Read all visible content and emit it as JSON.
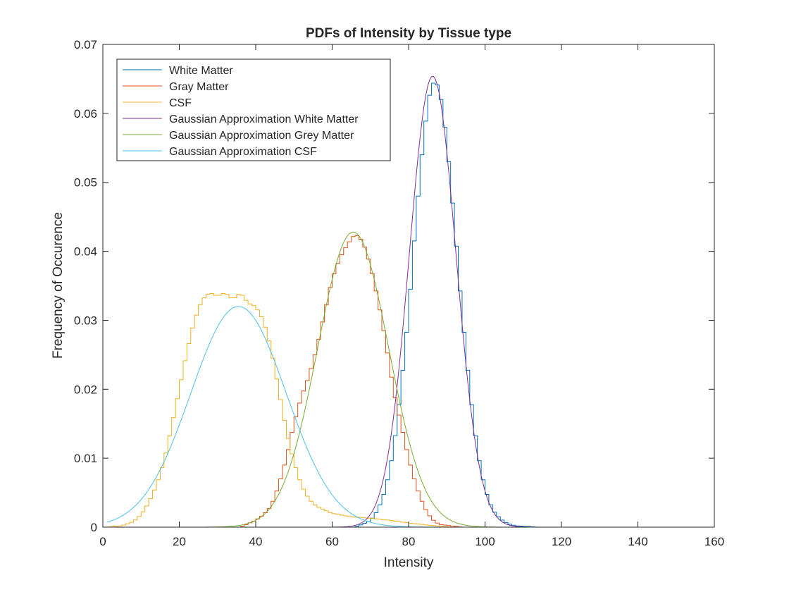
{
  "chart_data": {
    "type": "line",
    "title": "PDFs of Intensity by Tissue type",
    "xlabel": "Intensity",
    "ylabel": "Frequency of Occurence",
    "xlim": [
      0,
      160
    ],
    "ylim": [
      0,
      0.07
    ],
    "xticks": [
      0,
      20,
      40,
      60,
      80,
      100,
      120,
      140,
      160
    ],
    "yticks": [
      0,
      0.01,
      0.02,
      0.03,
      0.04,
      0.05,
      0.06,
      0.07
    ],
    "xtick_labels": [
      "0",
      "20",
      "40",
      "60",
      "80",
      "100",
      "120",
      "140",
      "160"
    ],
    "ytick_labels": [
      "0",
      "0.01",
      "0.02",
      "0.03",
      "0.04",
      "0.05",
      "0.06",
      "0.07"
    ],
    "grid": false,
    "legend_position": "top-left",
    "series": [
      {
        "name": "White Matter",
        "kind": "histogram",
        "color": "#0072BD",
        "bin_width": 1,
        "x": [
          70,
          72,
          74,
          76,
          78,
          80,
          82,
          84,
          86,
          88,
          90,
          92,
          94,
          96,
          98,
          100,
          102,
          104,
          106,
          108
        ],
        "values": [
          0.0009,
          0.0025,
          0.0055,
          0.011,
          0.02,
          0.031,
          0.045,
          0.057,
          0.0645,
          0.064,
          0.056,
          0.044,
          0.031,
          0.02,
          0.011,
          0.0055,
          0.0025,
          0.0012,
          0.0005,
          0.0002
        ]
      },
      {
        "name": "Gray Matter",
        "kind": "histogram",
        "color": "#D95319",
        "bin_width": 1,
        "x": [
          40,
          42,
          44,
          46,
          48,
          50,
          52,
          54,
          56,
          58,
          60,
          62,
          64,
          66,
          68,
          70,
          72,
          74,
          76,
          78,
          80,
          82,
          84,
          86,
          88
        ],
        "values": [
          0.001,
          0.0018,
          0.003,
          0.006,
          0.01,
          0.015,
          0.019,
          0.022,
          0.026,
          0.031,
          0.036,
          0.039,
          0.041,
          0.0425,
          0.0415,
          0.038,
          0.033,
          0.027,
          0.02,
          0.015,
          0.01,
          0.006,
          0.003,
          0.0012,
          0.0004
        ]
      },
      {
        "name": "CSF",
        "kind": "histogram",
        "color": "#EDB120",
        "bin_width": 1,
        "x": [
          5,
          8,
          10,
          12,
          14,
          16,
          18,
          20,
          22,
          24,
          26,
          28,
          30,
          32,
          34,
          36,
          38,
          40,
          42,
          44,
          46,
          48,
          50,
          52,
          54,
          56,
          58,
          60,
          65,
          70,
          75,
          80,
          85
        ],
        "values": [
          0.0002,
          0.0008,
          0.0018,
          0.0035,
          0.006,
          0.0095,
          0.0145,
          0.02,
          0.0255,
          0.03,
          0.033,
          0.034,
          0.0335,
          0.034,
          0.033,
          0.034,
          0.0325,
          0.032,
          0.03,
          0.026,
          0.02,
          0.014,
          0.0095,
          0.006,
          0.004,
          0.003,
          0.0025,
          0.002,
          0.0015,
          0.0013,
          0.001,
          0.0006,
          0.0003
        ]
      },
      {
        "name": "Gaussian Approximation White Matter",
        "kind": "gaussian",
        "color": "#7E2F8E",
        "mean": 86.3,
        "sd": 6.1,
        "peak": 0.0654
      },
      {
        "name": "Gaussian Approximation Grey Matter",
        "kind": "gaussian",
        "color": "#77AC30",
        "mean": 65.5,
        "sd": 9.3,
        "peak": 0.0428
      },
      {
        "name": "Gaussian Approximation CSF",
        "kind": "gaussian",
        "color": "#4DBEEE",
        "mean": 35.5,
        "sd": 12.5,
        "peak": 0.032
      }
    ]
  }
}
